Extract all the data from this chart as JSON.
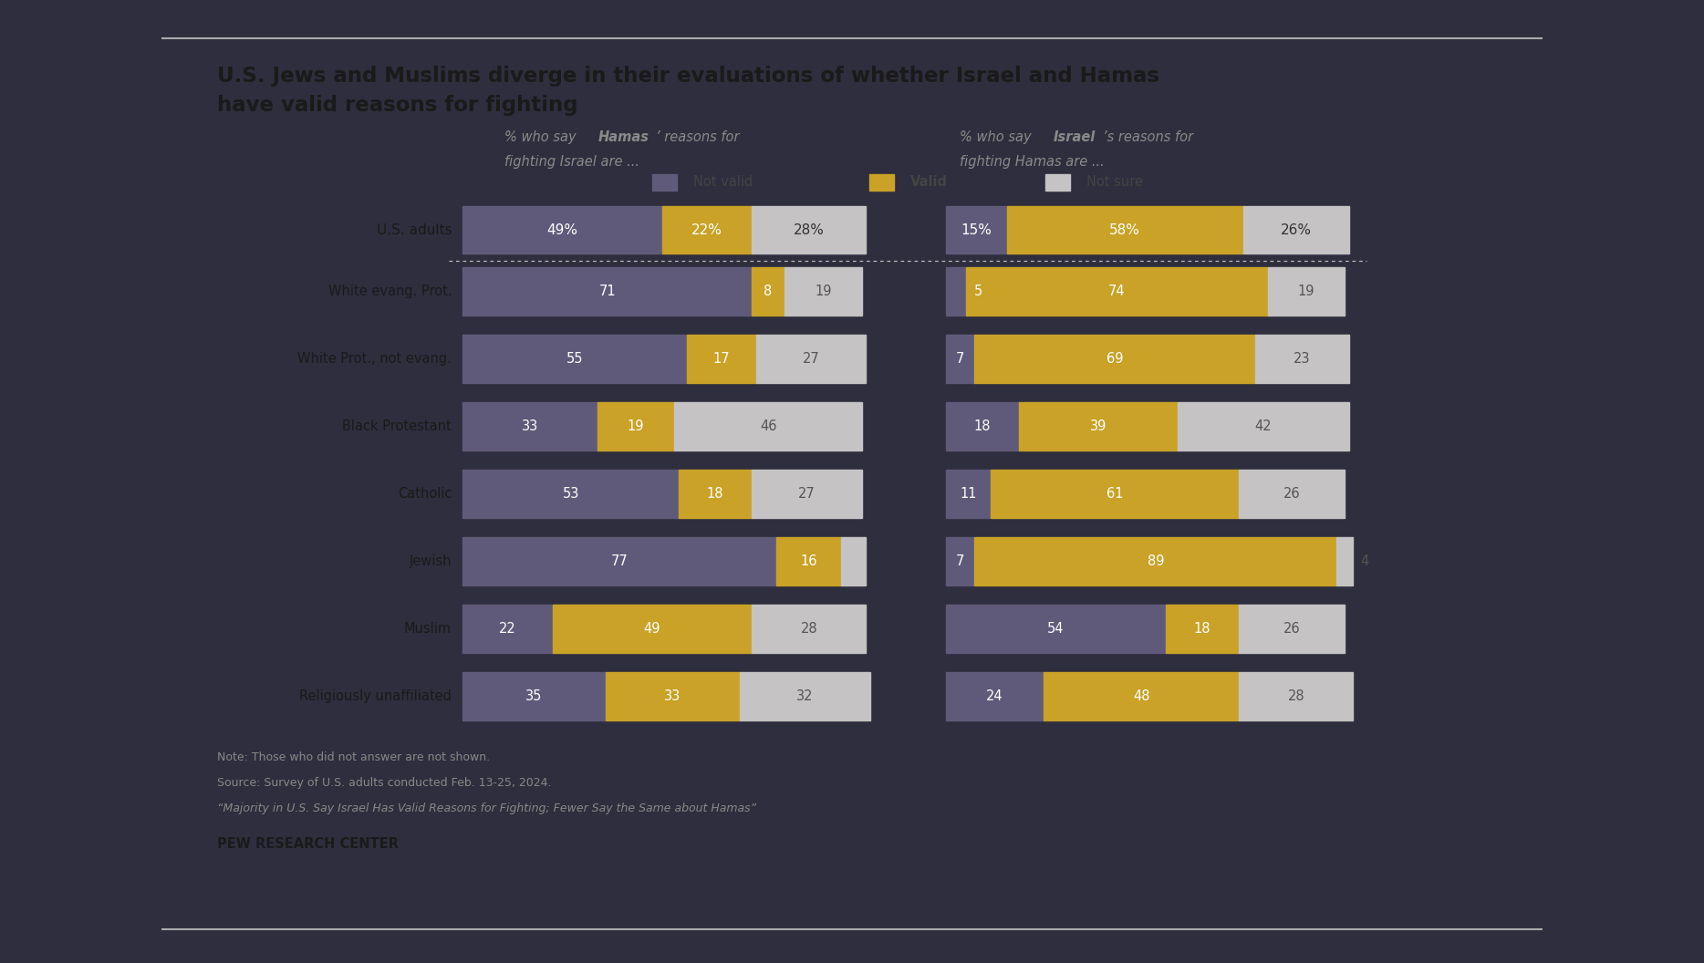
{
  "title_line1": "U.S. Jews and Muslims diverge in their evaluations of whether Israel and Hamas",
  "title_line2": "have valid reasons for fighting",
  "colors": {
    "not_valid": "#605a7a",
    "valid": "#c9a227",
    "not_sure": "#c5c3c3",
    "background": "#ffffff",
    "outer_background": "#2e2e3e",
    "text_dark": "#1a1a1a",
    "text_gray": "#888888",
    "text_label_dark": "#444444",
    "dotted_line": "#cccccc"
  },
  "categories": [
    "U.S. adults",
    "White evang. Prot.",
    "White Prot., not evang.",
    "Black Protestant",
    "Catholic",
    "Jewish",
    "Muslim",
    "Religiously unaffiliated"
  ],
  "hamas_data": [
    {
      "not_valid": 49,
      "valid": 22,
      "not_sure": 28
    },
    {
      "not_valid": 71,
      "valid": 8,
      "not_sure": 19
    },
    {
      "not_valid": 55,
      "valid": 17,
      "not_sure": 27
    },
    {
      "not_valid": 33,
      "valid": 19,
      "not_sure": 46
    },
    {
      "not_valid": 53,
      "valid": 18,
      "not_sure": 27
    },
    {
      "not_valid": 77,
      "valid": 16,
      "not_sure": 6
    },
    {
      "not_valid": 22,
      "valid": 49,
      "not_sure": 28
    },
    {
      "not_valid": 35,
      "valid": 33,
      "not_sure": 32
    }
  ],
  "israel_data": [
    {
      "not_valid": 15,
      "valid": 58,
      "not_sure": 26
    },
    {
      "not_valid": 5,
      "valid": 74,
      "not_sure": 19
    },
    {
      "not_valid": 7,
      "valid": 69,
      "not_sure": 23
    },
    {
      "not_valid": 18,
      "valid": 39,
      "not_sure": 42
    },
    {
      "not_valid": 11,
      "valid": 61,
      "not_sure": 26
    },
    {
      "not_valid": 7,
      "valid": 89,
      "not_sure": 4
    },
    {
      "not_valid": 54,
      "valid": 18,
      "not_sure": 26
    },
    {
      "not_valid": 24,
      "valid": 48,
      "not_sure": 28
    }
  ],
  "note_line1": "Note: Those who did not answer are not shown.",
  "note_line2": "Source: Survey of U.S. adults conducted Feb. 13-25, 2024.",
  "note_line3": "“Majority in U.S. Say Israel Has Valid Reasons for Fighting; Fewer Say the Same about Hamas”",
  "branding": "PEW RESEARCH CENTER"
}
